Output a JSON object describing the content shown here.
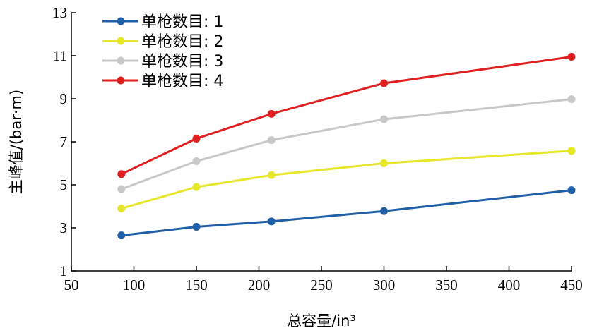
{
  "chart_data": {
    "type": "line",
    "xlabel": "总容量/in³",
    "ylabel": "主峰值/(bar·m)",
    "xlim": [
      50,
      450
    ],
    "ylim": [
      1,
      13
    ],
    "xticks": [
      50,
      100,
      150,
      200,
      250,
      300,
      350,
      400,
      450
    ],
    "yticks": [
      1,
      3,
      5,
      7,
      9,
      11,
      13
    ],
    "x": [
      90,
      150,
      210,
      300,
      450
    ],
    "legend_position": "top-left",
    "grid": false,
    "series": [
      {
        "name": "单枪数目: 1",
        "color": "#1f5fa8",
        "values": [
          2.65,
          3.05,
          3.3,
          3.78,
          4.75
        ]
      },
      {
        "name": "单枪数目: 2",
        "color": "#e6e62a",
        "values": [
          3.9,
          4.9,
          5.45,
          6.0,
          6.58
        ]
      },
      {
        "name": "单枪数目: 3",
        "color": "#c8c8c8",
        "values": [
          4.8,
          6.1,
          7.08,
          8.05,
          8.98
        ]
      },
      {
        "name": "单枪数目: 4",
        "color": "#e02020",
        "values": [
          5.5,
          7.15,
          8.3,
          9.72,
          10.95
        ]
      }
    ]
  }
}
